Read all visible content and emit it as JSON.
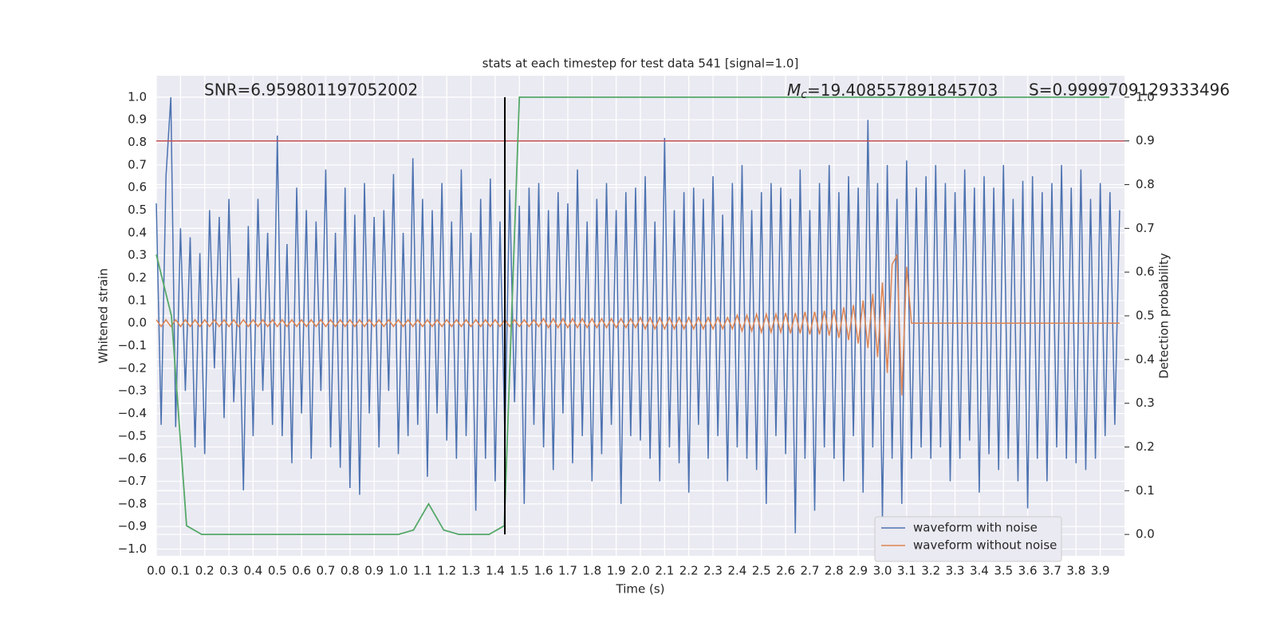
{
  "chart_data": {
    "type": "line",
    "title": "stats at each timestep for test data 541 [signal=1.0]",
    "xlabel": "Time (s)",
    "ylabel": "Whitened strain",
    "y2label": "Detection probability",
    "snr_text": "SNR=6.959801197052002",
    "mchirp_symbol": "M",
    "mchirp_subscript": "c",
    "mchirp_text": "=19.408557891845703",
    "score_text": "S=0.9999709129333496",
    "grid": true,
    "legend": "lower right",
    "xlim": [
      0,
      4.0
    ],
    "ylim": [
      -1.03,
      1.095
    ],
    "y2lim": [
      -0.049,
      1.049
    ],
    "xticks": [
      {
        "value": 0,
        "label": "0.0"
      },
      {
        "value": 0.1,
        "label": "0.1"
      },
      {
        "value": 0.2,
        "label": "0.2"
      },
      {
        "value": 0.3,
        "label": "0.3"
      },
      {
        "value": 0.4,
        "label": "0.4"
      },
      {
        "value": 0.5,
        "label": "0.5"
      },
      {
        "value": 0.6,
        "label": "0.6"
      },
      {
        "value": 0.7,
        "label": "0.7"
      },
      {
        "value": 0.8,
        "label": "0.8"
      },
      {
        "value": 0.9,
        "label": "0.9"
      },
      {
        "value": 1,
        "label": "1.0"
      },
      {
        "value": 1.1,
        "label": "1.1"
      },
      {
        "value": 1.2,
        "label": "1.2"
      },
      {
        "value": 1.3,
        "label": "1.3"
      },
      {
        "value": 1.4,
        "label": "1.4"
      },
      {
        "value": 1.5,
        "label": "1.5"
      },
      {
        "value": 1.6,
        "label": "1.6"
      },
      {
        "value": 1.7,
        "label": "1.7"
      },
      {
        "value": 1.8,
        "label": "1.8"
      },
      {
        "value": 1.9,
        "label": "1.9"
      },
      {
        "value": 2,
        "label": "2.0"
      },
      {
        "value": 2.1,
        "label": "2.1"
      },
      {
        "value": 2.2,
        "label": "2.2"
      },
      {
        "value": 2.3,
        "label": "2.3"
      },
      {
        "value": 2.4,
        "label": "2.4"
      },
      {
        "value": 2.5,
        "label": "2.5"
      },
      {
        "value": 2.6,
        "label": "2.6"
      },
      {
        "value": 2.7,
        "label": "2.7"
      },
      {
        "value": 2.8,
        "label": "2.8"
      },
      {
        "value": 2.9,
        "label": "2.9"
      },
      {
        "value": 3,
        "label": "3.0"
      },
      {
        "value": 3.1,
        "label": "3.1"
      },
      {
        "value": 3.2,
        "label": "3.2"
      },
      {
        "value": 3.3,
        "label": "3.3"
      },
      {
        "value": 3.4,
        "label": "3.4"
      },
      {
        "value": 3.5,
        "label": "3.5"
      },
      {
        "value": 3.6,
        "label": "3.6"
      },
      {
        "value": 3.7,
        "label": "3.7"
      },
      {
        "value": 3.8,
        "label": "3.8"
      },
      {
        "value": 3.9,
        "label": "3.9"
      }
    ],
    "yticks": [
      {
        "value": -1,
        "label": "−1.0"
      },
      {
        "value": -0.9,
        "label": "−0.9"
      },
      {
        "value": -0.8,
        "label": "−0.8"
      },
      {
        "value": -0.7,
        "label": "−0.7"
      },
      {
        "value": -0.6,
        "label": "−0.6"
      },
      {
        "value": -0.5,
        "label": "−0.5"
      },
      {
        "value": -0.4,
        "label": "−0.4"
      },
      {
        "value": -0.3,
        "label": "−0.3"
      },
      {
        "value": -0.2,
        "label": "−0.2"
      },
      {
        "value": -0.1,
        "label": "−0.1"
      },
      {
        "value": 0,
        "label": "0.0"
      },
      {
        "value": 0.1,
        "label": "0.1"
      },
      {
        "value": 0.2,
        "label": "0.2"
      },
      {
        "value": 0.3,
        "label": "0.3"
      },
      {
        "value": 0.4,
        "label": "0.4"
      },
      {
        "value": 0.5,
        "label": "0.5"
      },
      {
        "value": 0.6,
        "label": "0.6"
      },
      {
        "value": 0.7,
        "label": "0.7"
      },
      {
        "value": 0.8,
        "label": "0.8"
      },
      {
        "value": 0.9,
        "label": "0.9"
      },
      {
        "value": 1,
        "label": "1.0"
      }
    ],
    "y2ticks": [
      {
        "value": 0,
        "label": "0.0"
      },
      {
        "value": 0.1,
        "label": "0.1"
      },
      {
        "value": 0.2,
        "label": "0.2"
      },
      {
        "value": 0.3,
        "label": "0.3"
      },
      {
        "value": 0.4,
        "label": "0.4"
      },
      {
        "value": 0.5,
        "label": "0.5"
      },
      {
        "value": 0.6,
        "label": "0.6"
      },
      {
        "value": 0.7,
        "label": "0.7"
      },
      {
        "value": 0.8,
        "label": "0.8"
      },
      {
        "value": 0.9,
        "label": "0.9"
      },
      {
        "value": 1,
        "label": "1.0"
      }
    ],
    "x": [
      0,
      0.02,
      0.04,
      0.06,
      0.08,
      0.1,
      0.12,
      0.14,
      0.16,
      0.18,
      0.2,
      0.22,
      0.24,
      0.26,
      0.28,
      0.3,
      0.32,
      0.34,
      0.36,
      0.38,
      0.4,
      0.42,
      0.44,
      0.46,
      0.48,
      0.5,
      0.52,
      0.54,
      0.56,
      0.58,
      0.6,
      0.62,
      0.64,
      0.66,
      0.68,
      0.7,
      0.72,
      0.74,
      0.76,
      0.78,
      0.8,
      0.82,
      0.84,
      0.86,
      0.88,
      0.9,
      0.92,
      0.94,
      0.96,
      0.98,
      1.0,
      1.02,
      1.04,
      1.06,
      1.08,
      1.1,
      1.12,
      1.14,
      1.16,
      1.18,
      1.2,
      1.22,
      1.24,
      1.26,
      1.28,
      1.3,
      1.32,
      1.34,
      1.36,
      1.38,
      1.4,
      1.42,
      1.44,
      1.46,
      1.48,
      1.5,
      1.52,
      1.54,
      1.56,
      1.58,
      1.6,
      1.62,
      1.64,
      1.66,
      1.68,
      1.7,
      1.72,
      1.74,
      1.76,
      1.78,
      1.8,
      1.82,
      1.84,
      1.86,
      1.88,
      1.9,
      1.92,
      1.94,
      1.96,
      1.98,
      2.0,
      2.02,
      2.04,
      2.06,
      2.08,
      2.1,
      2.12,
      2.14,
      2.16,
      2.18,
      2.2,
      2.22,
      2.24,
      2.26,
      2.28,
      2.3,
      2.32,
      2.34,
      2.36,
      2.38,
      2.4,
      2.42,
      2.44,
      2.46,
      2.48,
      2.5,
      2.52,
      2.54,
      2.56,
      2.58,
      2.6,
      2.62,
      2.64,
      2.66,
      2.68,
      2.7,
      2.72,
      2.74,
      2.76,
      2.78,
      2.8,
      2.82,
      2.84,
      2.86,
      2.88,
      2.9,
      2.92,
      2.94,
      2.96,
      2.98,
      3.0,
      3.02,
      3.04,
      3.06,
      3.08,
      3.1,
      3.12,
      3.14,
      3.16,
      3.18,
      3.2,
      3.22,
      3.24,
      3.26,
      3.28,
      3.3,
      3.32,
      3.34,
      3.36,
      3.38,
      3.4,
      3.42,
      3.44,
      3.46,
      3.48,
      3.5,
      3.52,
      3.54,
      3.56,
      3.58,
      3.6,
      3.62,
      3.64,
      3.66,
      3.68,
      3.7,
      3.72,
      3.74,
      3.76,
      3.78,
      3.8,
      3.82,
      3.84,
      3.86,
      3.88,
      3.9,
      3.92,
      3.94,
      3.96,
      3.98
    ],
    "series": [
      {
        "name": "waveform with noise",
        "color": "#4c72b0",
        "values": [
          0.53,
          -0.45,
          0.65,
          1.0,
          -0.46,
          0.42,
          -0.3,
          0.38,
          -0.55,
          0.31,
          -0.58,
          0.5,
          -0.2,
          0.47,
          -0.42,
          0.55,
          -0.35,
          0.2,
          -0.74,
          0.43,
          -0.5,
          0.55,
          -0.3,
          0.4,
          -0.45,
          0.83,
          -0.5,
          0.35,
          -0.62,
          0.6,
          -0.4,
          0.5,
          -0.6,
          0.45,
          -0.3,
          0.68,
          -0.55,
          0.4,
          -0.64,
          0.6,
          -0.73,
          0.48,
          -0.76,
          0.62,
          -0.4,
          0.47,
          -0.55,
          0.5,
          -0.3,
          0.66,
          -0.58,
          0.4,
          -0.5,
          0.73,
          -0.45,
          0.55,
          -0.68,
          0.5,
          -0.4,
          0.62,
          -0.52,
          0.45,
          -0.6,
          0.68,
          -0.5,
          0.4,
          -0.83,
          0.55,
          -0.6,
          0.64,
          -0.7,
          0.45,
          -0.5,
          0.59,
          -0.35,
          0.52,
          -0.8,
          0.6,
          -0.45,
          0.62,
          -0.55,
          0.5,
          -0.65,
          0.58,
          -0.4,
          0.53,
          -0.62,
          0.68,
          -0.5,
          0.45,
          -0.7,
          0.55,
          -0.58,
          0.62,
          -0.45,
          0.5,
          -0.8,
          0.58,
          -0.5,
          0.6,
          -0.52,
          0.65,
          -0.6,
          0.45,
          -0.7,
          0.82,
          -0.55,
          0.5,
          -0.62,
          0.58,
          -0.75,
          0.6,
          -0.45,
          0.55,
          -0.6,
          0.65,
          -0.5,
          0.48,
          -0.7,
          0.62,
          -0.55,
          0.7,
          -0.6,
          0.5,
          -0.65,
          0.58,
          -0.8,
          0.62,
          -0.5,
          0.6,
          -0.58,
          0.55,
          -0.93,
          0.68,
          -0.6,
          0.5,
          -0.83,
          0.62,
          -0.55,
          0.7,
          -0.6,
          0.58,
          -0.7,
          0.65,
          -0.5,
          0.6,
          -0.75,
          0.9,
          -0.55,
          0.62,
          -0.87,
          0.7,
          -0.6,
          0.55,
          -0.8,
          0.72,
          -0.6,
          0.6,
          -0.55,
          0.65,
          -0.6,
          0.7,
          -0.55,
          0.62,
          -0.7,
          0.58,
          -0.6,
          0.68,
          -0.52,
          0.6,
          -0.75,
          0.65,
          -0.58,
          0.6,
          -0.65,
          0.7,
          -0.6,
          0.55,
          -0.7,
          0.63,
          -0.82,
          0.65,
          -0.6,
          0.58,
          -0.7,
          0.62,
          -0.55,
          0.7,
          -0.6,
          0.6,
          -0.62,
          0.68,
          -0.65,
          0.55,
          -0.6,
          0.62,
          -0.5,
          0.58,
          -0.45,
          0.5
        ]
      },
      {
        "name": "waveform without noise",
        "color": "#dd8452",
        "values": [
          0.015,
          -0.015,
          0.015,
          -0.015,
          0.015,
          -0.015,
          0.015,
          -0.015,
          0.015,
          -0.015,
          0.015,
          -0.015,
          0.015,
          -0.015,
          0.015,
          -0.015,
          0.015,
          -0.015,
          0.015,
          -0.015,
          0.015,
          -0.015,
          0.015,
          -0.015,
          0.015,
          -0.015,
          0.015,
          -0.015,
          0.015,
          -0.015,
          0.015,
          -0.015,
          0.015,
          -0.015,
          0.015,
          -0.015,
          0.015,
          -0.015,
          0.015,
          -0.015,
          0.015,
          -0.015,
          0.015,
          -0.015,
          0.015,
          -0.015,
          0.015,
          -0.015,
          0.015,
          -0.015,
          0.015,
          -0.015,
          0.015,
          -0.015,
          0.015,
          -0.015,
          0.015,
          -0.015,
          0.015,
          -0.015,
          0.015,
          -0.015,
          0.015,
          -0.015,
          0.015,
          -0.015,
          0.015,
          -0.015,
          0.015,
          -0.015,
          0.015,
          -0.015,
          0.015,
          -0.015,
          0.015,
          -0.015,
          0.015,
          -0.015,
          0.015,
          -0.015,
          0.02,
          -0.02,
          0.02,
          -0.02,
          0.02,
          -0.02,
          0.02,
          -0.02,
          0.02,
          -0.02,
          0.02,
          -0.02,
          0.02,
          -0.02,
          0.02,
          -0.02,
          0.02,
          -0.02,
          0.02,
          -0.02,
          0.025,
          -0.025,
          0.025,
          -0.025,
          0.025,
          -0.025,
          0.025,
          -0.025,
          0.025,
          -0.025,
          0.025,
          -0.025,
          0.025,
          -0.025,
          0.025,
          -0.025,
          0.025,
          -0.025,
          0.025,
          -0.025,
          0.035,
          -0.035,
          0.035,
          -0.035,
          0.04,
          -0.04,
          0.04,
          -0.04,
          0.04,
          -0.04,
          0.045,
          -0.045,
          0.045,
          -0.045,
          0.05,
          -0.05,
          0.05,
          -0.05,
          0.055,
          -0.055,
          0.06,
          -0.065,
          0.07,
          -0.075,
          0.08,
          -0.09,
          0.1,
          -0.11,
          0.13,
          -0.15,
          0.18,
          -0.22,
          0.26,
          0.3,
          -0.32,
          0.25,
          0,
          0,
          0,
          0,
          0,
          0,
          0,
          0,
          0,
          0,
          0,
          0,
          0,
          0,
          0,
          0,
          0,
          0,
          0,
          0,
          0,
          0,
          0,
          0,
          0,
          0,
          0,
          0,
          0,
          0,
          0,
          0,
          0,
          0,
          0,
          0,
          0,
          0,
          0,
          0,
          0,
          0,
          0,
          0
        ]
      }
    ],
    "detection_probability": {
      "color": "#55a868",
      "axis": "y2",
      "x": [
        0,
        0.0625,
        0.125,
        0.1875,
        0.25,
        0.3125,
        0.375,
        0.4375,
        0.5,
        0.5625,
        0.625,
        0.6875,
        0.75,
        0.8125,
        0.875,
        0.9375,
        1.0,
        1.0625,
        1.125,
        1.1875,
        1.25,
        1.3125,
        1.375,
        1.4375,
        1.5,
        1.5625,
        1.625,
        1.6875,
        1.75,
        1.8125,
        1.875,
        1.9375,
        2.0,
        2.0625,
        2.125,
        2.1875,
        2.25,
        2.3125,
        2.375,
        2.4375,
        2.5,
        2.5625,
        2.625,
        2.6875,
        2.75,
        2.8125,
        2.875,
        2.9375,
        3.0,
        3.0625,
        3.125,
        3.1875,
        3.25,
        3.3125,
        3.375,
        3.4375,
        3.5,
        3.5625,
        3.625,
        3.6875,
        3.75,
        3.8125,
        3.875,
        3.9375
      ],
      "values": [
        0.64,
        0.5,
        0.02,
        0,
        0,
        0,
        0,
        0,
        0,
        0,
        0,
        0,
        0,
        0,
        0,
        0,
        0,
        0.01,
        0.07,
        0.01,
        0,
        0,
        0,
        0.02,
        1.0,
        1.0,
        1.0,
        1.0,
        1.0,
        1.0,
        1.0,
        1.0,
        1.0,
        1.0,
        1.0,
        1.0,
        1.0,
        1.0,
        1.0,
        1.0,
        1.0,
        1.0,
        1.0,
        1.0,
        1.0,
        1.0,
        1.0,
        1.0,
        1.0,
        1.0,
        1.0,
        1.0,
        1.0,
        1.0,
        1.0,
        1.0,
        1.0,
        1.0,
        1.0,
        1.0,
        1.0,
        1.0,
        1.0,
        1.0
      ]
    },
    "threshold": 0.9,
    "threshold_color": "#c44e52",
    "detection_time": 1.44,
    "detection_time_color": "#000000"
  }
}
